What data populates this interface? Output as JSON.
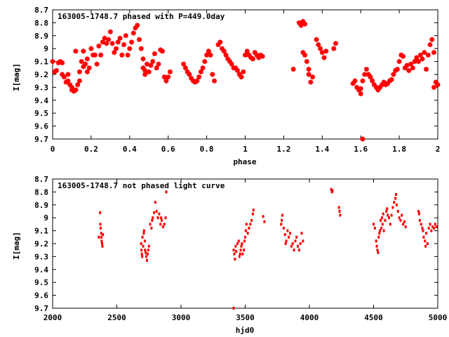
{
  "chart_data": [
    {
      "type": "scatter",
      "title": "163005-1748.7 phased with P=449.0day",
      "xlabel": "phase",
      "ylabel": "I[mag]",
      "xlim": [
        0,
        2
      ],
      "ylim": [
        9.7,
        8.7
      ],
      "y_inverted": true,
      "x_ticks": [
        0,
        0.2,
        0.4,
        0.6,
        0.8,
        1,
        1.2,
        1.4,
        1.6,
        1.8,
        2
      ],
      "x_tick_labels": [
        "0",
        "0.2",
        "0.4",
        "0.6",
        "0.8",
        "1",
        "1.2",
        "1.4",
        "1.6",
        "1.8",
        "2"
      ],
      "y_ticks": [
        8.7,
        8.8,
        8.9,
        9,
        9.1,
        9.2,
        9.3,
        9.4,
        9.5,
        9.6,
        9.7
      ],
      "y_tick_labels": [
        "8.7",
        "8.8",
        "8.9",
        "9",
        "9.1",
        "9.2",
        "9.3",
        "9.4",
        "9.5",
        "9.6",
        "9.7"
      ],
      "marker_color": "#ff0000",
      "marker": "plus-bold",
      "points": [
        [
          0.0,
          9.1
        ],
        [
          0.01,
          9.18
        ],
        [
          0.02,
          9.17
        ],
        [
          0.03,
          9.11
        ],
        [
          0.04,
          9.1
        ],
        [
          0.05,
          9.2
        ],
        [
          0.05,
          9.11
        ],
        [
          0.06,
          9.22
        ],
        [
          0.07,
          9.26
        ],
        [
          0.08,
          9.25
        ],
        [
          0.08,
          9.2
        ],
        [
          0.09,
          9.28
        ],
        [
          0.1,
          9.32
        ],
        [
          0.1,
          9.3
        ],
        [
          0.11,
          9.33
        ],
        [
          0.12,
          9.32
        ],
        [
          0.12,
          9.02
        ],
        [
          0.13,
          9.28
        ],
        [
          0.14,
          9.25
        ],
        [
          0.14,
          9.18
        ],
        [
          0.15,
          9.1
        ],
        [
          0.16,
          9.14
        ],
        [
          0.16,
          9.02
        ],
        [
          0.17,
          9.12
        ],
        [
          0.18,
          9.08
        ],
        [
          0.18,
          9.18
        ],
        [
          0.19,
          9.15
        ],
        [
          0.2,
          9.0
        ],
        [
          0.21,
          9.05
        ],
        [
          0.22,
          9.05
        ],
        [
          0.23,
          9.12
        ],
        [
          0.24,
          8.98
        ],
        [
          0.25,
          9.05
        ],
        [
          0.26,
          8.95
        ],
        [
          0.27,
          8.92
        ],
        [
          0.28,
          8.96
        ],
        [
          0.29,
          8.93
        ],
        [
          0.3,
          8.87
        ],
        [
          0.31,
          8.96
        ],
        [
          0.32,
          9.03
        ],
        [
          0.33,
          9.0
        ],
        [
          0.34,
          8.95
        ],
        [
          0.35,
          8.92
        ],
        [
          0.36,
          9.05
        ],
        [
          0.37,
          8.97
        ],
        [
          0.38,
          8.9
        ],
        [
          0.39,
          9.05
        ],
        [
          0.4,
          9.0
        ],
        [
          0.41,
          8.95
        ],
        [
          0.42,
          8.88
        ],
        [
          0.43,
          8.84
        ],
        [
          0.44,
          8.82
        ],
        [
          0.45,
          8.93
        ],
        [
          0.46,
          9.0
        ],
        [
          0.47,
          9.08
        ],
        [
          0.47,
          9.15
        ],
        [
          0.48,
          9.17
        ],
        [
          0.48,
          9.2
        ],
        [
          0.49,
          9.12
        ],
        [
          0.5,
          9.18
        ],
        [
          0.51,
          9.13
        ],
        [
          0.52,
          9.1
        ],
        [
          0.53,
          9.04
        ],
        [
          0.54,
          9.15
        ],
        [
          0.55,
          9.12
        ],
        [
          0.56,
          9.01
        ],
        [
          0.57,
          9.02
        ],
        [
          0.58,
          9.22
        ],
        [
          0.59,
          9.25
        ],
        [
          0.6,
          9.22
        ],
        [
          0.61,
          9.18
        ],
        [
          0.68,
          9.12
        ],
        [
          0.69,
          9.15
        ],
        [
          0.7,
          9.18
        ],
        [
          0.71,
          9.2
        ],
        [
          0.72,
          9.23
        ],
        [
          0.73,
          9.25
        ],
        [
          0.74,
          9.26
        ],
        [
          0.75,
          9.25
        ],
        [
          0.76,
          9.22
        ],
        [
          0.77,
          9.18
        ],
        [
          0.78,
          9.15
        ],
        [
          0.79,
          9.1
        ],
        [
          0.8,
          9.05
        ],
        [
          0.81,
          9.02
        ],
        [
          0.82,
          9.05
        ],
        [
          0.83,
          9.2
        ],
        [
          0.84,
          9.25
        ],
        [
          0.86,
          8.97
        ],
        [
          0.87,
          8.95
        ],
        [
          0.88,
          9.0
        ],
        [
          0.89,
          9.02
        ],
        [
          0.9,
          9.05
        ],
        [
          0.91,
          9.08
        ],
        [
          0.92,
          9.1
        ],
        [
          0.93,
          9.12
        ],
        [
          0.94,
          9.15
        ],
        [
          0.95,
          9.15
        ],
        [
          0.96,
          9.17
        ],
        [
          0.97,
          9.2
        ],
        [
          0.98,
          9.22
        ],
        [
          0.99,
          9.18
        ],
        [
          1.0,
          9.05
        ],
        [
          1.01,
          9.02
        ],
        [
          1.02,
          9.05
        ],
        [
          1.03,
          9.07
        ],
        [
          1.04,
          9.08
        ],
        [
          1.05,
          9.03
        ],
        [
          1.06,
          9.05
        ],
        [
          1.07,
          9.07
        ],
        [
          1.08,
          9.05
        ],
        [
          1.09,
          9.06
        ],
        [
          1.25,
          9.16
        ],
        [
          1.28,
          8.8
        ],
        [
          1.29,
          8.82
        ],
        [
          1.3,
          8.79
        ],
        [
          1.31,
          8.81
        ],
        [
          1.3,
          9.03
        ],
        [
          1.31,
          9.05
        ],
        [
          1.32,
          9.1
        ],
        [
          1.33,
          9.16
        ],
        [
          1.33,
          9.2
        ],
        [
          1.34,
          9.26
        ],
        [
          1.35,
          9.22
        ],
        [
          1.37,
          8.93
        ],
        [
          1.38,
          8.97
        ],
        [
          1.39,
          9.0
        ],
        [
          1.4,
          9.03
        ],
        [
          1.41,
          9.07
        ],
        [
          1.42,
          9.02
        ],
        [
          1.46,
          9.0
        ],
        [
          1.47,
          8.96
        ],
        [
          1.56,
          9.27
        ],
        [
          1.57,
          9.25
        ],
        [
          1.58,
          9.3
        ],
        [
          1.59,
          9.32
        ],
        [
          1.6,
          9.31
        ],
        [
          1.6,
          9.35
        ],
        [
          1.61,
          9.25
        ],
        [
          1.62,
          9.2
        ],
        [
          1.63,
          9.16
        ],
        [
          1.64,
          9.2
        ],
        [
          1.65,
          9.22
        ],
        [
          1.66,
          9.25
        ],
        [
          1.67,
          9.28
        ],
        [
          1.68,
          9.3
        ],
        [
          1.69,
          9.32
        ],
        [
          1.7,
          9.3
        ],
        [
          1.71,
          9.28
        ],
        [
          1.72,
          9.26
        ],
        [
          1.73,
          9.28
        ],
        [
          1.74,
          9.27
        ],
        [
          1.75,
          9.25
        ],
        [
          1.76,
          9.24
        ],
        [
          1.77,
          9.2
        ],
        [
          1.78,
          9.17
        ],
        [
          1.79,
          9.16
        ],
        [
          1.8,
          9.1
        ],
        [
          1.81,
          9.05
        ],
        [
          1.82,
          9.06
        ],
        [
          1.83,
          9.15
        ],
        [
          1.84,
          9.13
        ],
        [
          1.85,
          9.17
        ],
        [
          1.86,
          9.12
        ],
        [
          1.87,
          9.15
        ],
        [
          1.88,
          9.1
        ],
        [
          1.89,
          9.07
        ],
        [
          1.9,
          9.1
        ],
        [
          1.91,
          9.05
        ],
        [
          1.92,
          9.08
        ],
        [
          1.93,
          9.03
        ],
        [
          1.94,
          9.16
        ],
        [
          1.95,
          9.05
        ],
        [
          1.96,
          8.97
        ],
        [
          1.97,
          8.93
        ],
        [
          1.98,
          9.03
        ],
        [
          1.99,
          9.26
        ],
        [
          1.98,
          9.3
        ],
        [
          2.0,
          9.28
        ],
        [
          1.61,
          9.7
        ]
      ]
    },
    {
      "type": "scatter",
      "title": "163005-1748.7 not phased light curve",
      "xlabel": "hjd0",
      "ylabel": "I[mag]",
      "xlim": [
        2000,
        5000
      ],
      "ylim": [
        9.7,
        8.7
      ],
      "y_inverted": true,
      "x_ticks": [
        2000,
        2500,
        3000,
        3500,
        4000,
        4500,
        5000
      ],
      "x_tick_labels": [
        "2000",
        "2500",
        "3000",
        "3500",
        "4000",
        "4500",
        "5000"
      ],
      "y_ticks": [
        8.7,
        8.8,
        8.9,
        9,
        9.1,
        9.2,
        9.3,
        9.4,
        9.5,
        9.6,
        9.7
      ],
      "y_tick_labels": [
        "8.7",
        "8.8",
        "8.9",
        "9",
        "9.1",
        "9.2",
        "9.3",
        "9.4",
        "9.5",
        "9.6",
        "9.7"
      ],
      "marker_color": "#ff0000",
      "marker": "dot",
      "points": [
        [
          2360,
          9.15
        ],
        [
          2370,
          8.96
        ],
        [
          2372,
          9.05
        ],
        [
          2375,
          9.08
        ],
        [
          2378,
          9.12
        ],
        [
          2380,
          9.15
        ],
        [
          2382,
          9.18
        ],
        [
          2385,
          9.2
        ],
        [
          2388,
          9.22
        ],
        [
          2392,
          9.13
        ],
        [
          2690,
          9.2
        ],
        [
          2692,
          9.25
        ],
        [
          2695,
          9.28
        ],
        [
          2698,
          9.3
        ],
        [
          2700,
          9.15
        ],
        [
          2705,
          9.22
        ],
        [
          2710,
          9.12
        ],
        [
          2712,
          9.1
        ],
        [
          2718,
          9.18
        ],
        [
          2720,
          9.25
        ],
        [
          2725,
          9.27
        ],
        [
          2730,
          9.3
        ],
        [
          2735,
          9.33
        ],
        [
          2740,
          9.28
        ],
        [
          2745,
          9.25
        ],
        [
          2750,
          9.22
        ],
        [
          2760,
          9.05
        ],
        [
          2770,
          9.08
        ],
        [
          2775,
          9.02
        ],
        [
          2780,
          9.0
        ],
        [
          2790,
          8.96
        ],
        [
          2800,
          8.88
        ],
        [
          2810,
          8.95
        ],
        [
          2820,
          9.0
        ],
        [
          2830,
          8.97
        ],
        [
          2840,
          9.05
        ],
        [
          2845,
          9.0
        ],
        [
          2850,
          9.02
        ],
        [
          2860,
          9.07
        ],
        [
          2870,
          9.05
        ],
        [
          2880,
          9.0
        ],
        [
          2885,
          8.8
        ],
        [
          3410,
          9.25
        ],
        [
          3415,
          9.28
        ],
        [
          3420,
          9.32
        ],
        [
          3425,
          9.22
        ],
        [
          3430,
          9.26
        ],
        [
          3440,
          9.2
        ],
        [
          3450,
          9.18
        ],
        [
          3455,
          9.3
        ],
        [
          3460,
          9.28
        ],
        [
          3465,
          9.25
        ],
        [
          3470,
          9.22
        ],
        [
          3475,
          9.2
        ],
        [
          3480,
          9.28
        ],
        [
          3490,
          9.25
        ],
        [
          3495,
          9.18
        ],
        [
          3500,
          9.15
        ],
        [
          3505,
          9.1
        ],
        [
          3510,
          9.05
        ],
        [
          3520,
          9.12
        ],
        [
          3530,
          9.08
        ],
        [
          3540,
          9.05
        ],
        [
          3550,
          9.02
        ],
        [
          3560,
          8.97
        ],
        [
          3565,
          8.94
        ],
        [
          3640,
          8.99
        ],
        [
          3650,
          9.03
        ],
        [
          3780,
          9.05
        ],
        [
          3785,
          9.02
        ],
        [
          3790,
          8.98
        ],
        [
          3800,
          9.08
        ],
        [
          3810,
          9.13
        ],
        [
          3815,
          9.2
        ],
        [
          3820,
          9.18
        ],
        [
          3830,
          9.1
        ],
        [
          3840,
          9.15
        ],
        [
          3850,
          9.12
        ],
        [
          3860,
          9.22
        ],
        [
          3870,
          9.2
        ],
        [
          3880,
          9.25
        ],
        [
          3890,
          9.18
        ],
        [
          3900,
          9.15
        ],
        [
          3910,
          9.22
        ],
        [
          3920,
          9.25
        ],
        [
          3930,
          9.2
        ],
        [
          3940,
          9.12
        ],
        [
          3950,
          9.18
        ],
        [
          4170,
          8.78
        ],
        [
          4175,
          8.8
        ],
        [
          4180,
          8.79
        ],
        [
          4230,
          8.92
        ],
        [
          4235,
          8.95
        ],
        [
          4240,
          8.98
        ],
        [
          4500,
          9.05
        ],
        [
          4510,
          9.08
        ],
        [
          4520,
          9.18
        ],
        [
          4525,
          9.22
        ],
        [
          4530,
          9.25
        ],
        [
          4535,
          9.27
        ],
        [
          4540,
          9.15
        ],
        [
          4545,
          9.12
        ],
        [
          4550,
          9.1
        ],
        [
          4555,
          9.02
        ],
        [
          4560,
          9.08
        ],
        [
          4565,
          9.0
        ],
        [
          4570,
          9.05
        ],
        [
          4575,
          8.97
        ],
        [
          4580,
          9.1
        ],
        [
          4590,
          9.02
        ],
        [
          4600,
          8.95
        ],
        [
          4605,
          8.93
        ],
        [
          4610,
          8.98
        ],
        [
          4620,
          9.0
        ],
        [
          4630,
          9.05
        ],
        [
          4640,
          8.98
        ],
        [
          4650,
          8.92
        ],
        [
          4660,
          8.88
        ],
        [
          4670,
          8.85
        ],
        [
          4675,
          8.82
        ],
        [
          4680,
          8.9
        ],
        [
          4690,
          8.95
        ],
        [
          4700,
          9.0
        ],
        [
          4710,
          9.02
        ],
        [
          4720,
          8.98
        ],
        [
          4730,
          9.05
        ],
        [
          4740,
          9.03
        ],
        [
          4750,
          9.07
        ],
        [
          4850,
          8.95
        ],
        [
          4855,
          8.97
        ],
        [
          4860,
          9.02
        ],
        [
          4870,
          9.05
        ],
        [
          4880,
          9.08
        ],
        [
          4885,
          9.1
        ],
        [
          4890,
          9.15
        ],
        [
          4900,
          9.18
        ],
        [
          4905,
          9.22
        ],
        [
          4910,
          9.12
        ],
        [
          4920,
          9.2
        ],
        [
          4930,
          9.08
        ],
        [
          4940,
          9.05
        ],
        [
          4950,
          9.1
        ],
        [
          4960,
          9.07
        ],
        [
          4970,
          9.08
        ],
        [
          4980,
          9.05
        ],
        [
          4990,
          9.07
        ],
        [
          3410,
          9.7
        ]
      ]
    }
  ]
}
